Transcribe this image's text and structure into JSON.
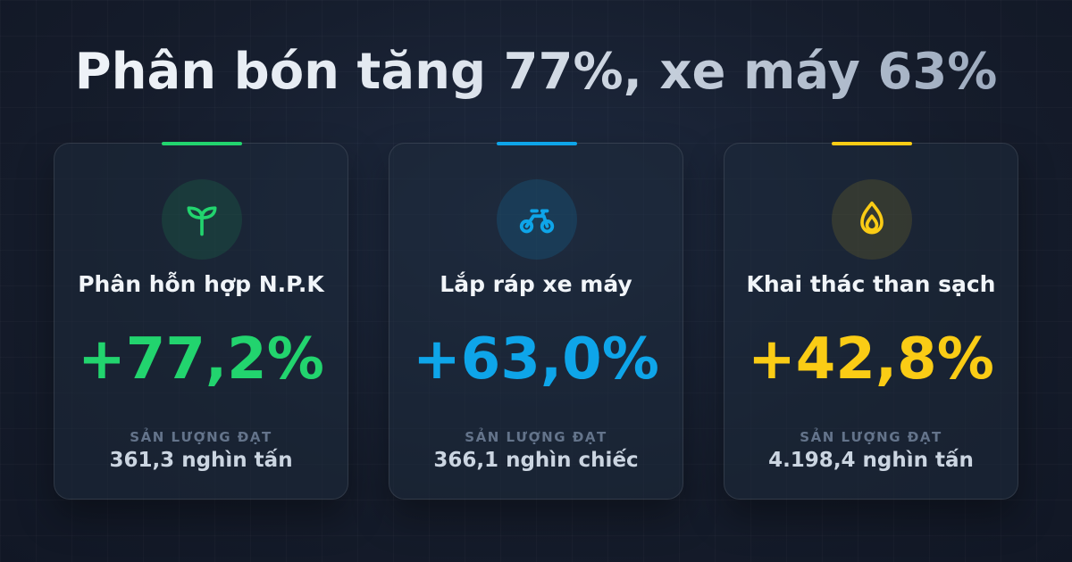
{
  "title": "Phân bón tăng 77%, xe máy 63%",
  "cards": [
    {
      "label": "Phân hỗn hợp N.P.K",
      "change": "+77,2%",
      "caption": "SẢN LƯỢNG ĐẠT",
      "output": "361,3 nghìn tấn"
    },
    {
      "label": "Lắp ráp xe máy",
      "change": "+63,0%",
      "caption": "SẢN LƯỢNG ĐẠT",
      "output": "366,1 nghìn chiếc"
    },
    {
      "label": "Khai thác than sạch",
      "change": "+42,8%",
      "caption": "SẢN LƯỢNG ĐẠT",
      "output": "4.198,4 nghìn tấn"
    }
  ]
}
